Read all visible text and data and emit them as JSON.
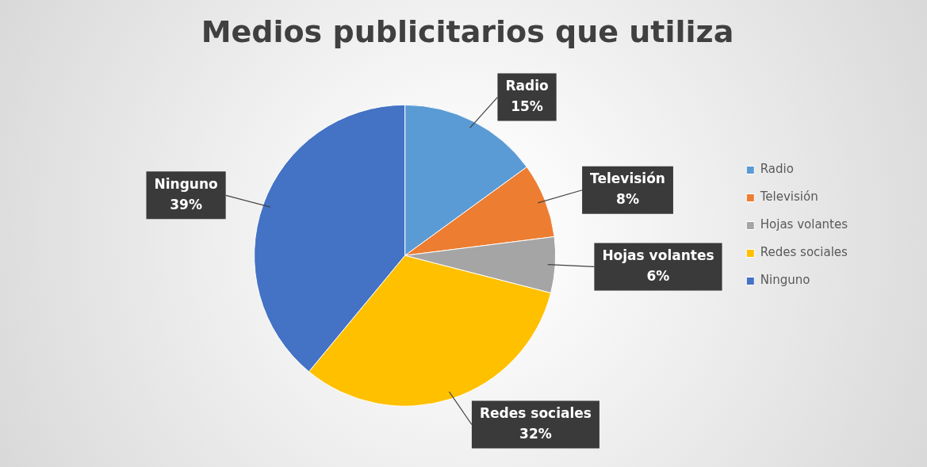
{
  "chart_data": {
    "type": "pie",
    "title": "Medios publicitarios que utiliza",
    "categories": [
      "Radio",
      "Televisión",
      "Hojas volantes",
      "Redes sociales",
      "Ninguno"
    ],
    "values": [
      15,
      8,
      6,
      32,
      39
    ],
    "value_labels": [
      "15%",
      "8%",
      "6%",
      "32%",
      "39%"
    ],
    "colors": [
      "#5b9bd5",
      "#ed7d31",
      "#a5a5a5",
      "#ffc000",
      "#4472c4"
    ],
    "legend": "right"
  }
}
